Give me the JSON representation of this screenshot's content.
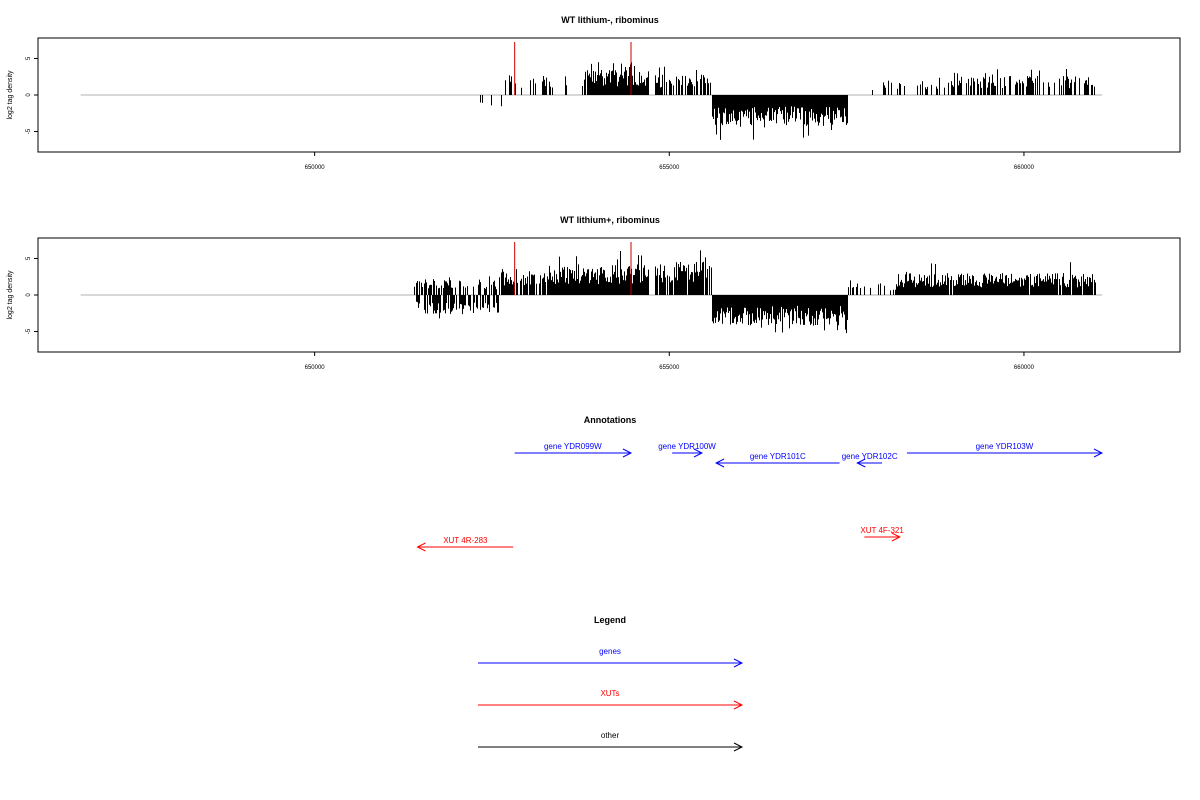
{
  "colors": {
    "gene": "#0000ff",
    "xut": "#ff0000",
    "other": "#000000",
    "marker": "#cc0000",
    "bar": "#000000",
    "baseline": "#b0b0b0"
  },
  "chart_data": [
    {
      "type": "bar",
      "title": "WT lithium-, ribominus",
      "ylabel": "log2 tag density",
      "xlim": [
        646100,
        662200
      ],
      "ylim": [
        -7.8,
        7.8
      ],
      "xticks": [
        650000,
        655000,
        660000
      ],
      "xtick_labels": [
        "650000",
        "655000",
        "660000"
      ],
      "yticks": [
        -5,
        0,
        5
      ],
      "ytick_labels": [
        "-5",
        "0",
        "5"
      ],
      "baseline_range": [
        646700,
        661100
      ],
      "markers": [
        652820,
        654460
      ],
      "segments": [
        {
          "from": 651500,
          "to": 652700,
          "sign": "neg",
          "amp": 2.0,
          "density": 0.05
        },
        {
          "from": 652650,
          "to": 653350,
          "sign": "pos",
          "amp": 2.8,
          "density": 0.35
        },
        {
          "from": 653350,
          "to": 653800,
          "sign": "pos",
          "amp": 2.0,
          "density": 0.25
        },
        {
          "from": 653800,
          "to": 654700,
          "sign": "pos",
          "amp": 3.4,
          "density": 0.95
        },
        {
          "from": 654000,
          "to": 654500,
          "sign": "pos",
          "amp": 4.6,
          "density": 0.6
        },
        {
          "from": 654800,
          "to": 655600,
          "sign": "pos",
          "amp": 2.8,
          "density": 0.7
        },
        {
          "from": 655600,
          "to": 657500,
          "sign": "neg",
          "amp": 4.3,
          "density": 1.0
        },
        {
          "from": 657500,
          "to": 658000,
          "sign": "pos",
          "amp": 1.0,
          "density": 0.02
        },
        {
          "from": 658000,
          "to": 659000,
          "sign": "pos",
          "amp": 2.0,
          "density": 0.3
        },
        {
          "from": 659000,
          "to": 661000,
          "sign": "pos",
          "amp": 2.6,
          "density": 0.6
        }
      ]
    },
    {
      "type": "bar",
      "title": "WT lithium+, ribominus",
      "ylabel": "log2 tag density",
      "xlim": [
        646100,
        662200
      ],
      "ylim": [
        -7.8,
        7.8
      ],
      "xticks": [
        650000,
        655000,
        660000
      ],
      "xtick_labels": [
        "650000",
        "655000",
        "660000"
      ],
      "yticks": [
        -5,
        0,
        5
      ],
      "ytick_labels": [
        "-5",
        "0",
        "5"
      ],
      "baseline_range": [
        646700,
        661100
      ],
      "markers": [
        652820,
        654460
      ],
      "segments": [
        {
          "from": 651400,
          "to": 652600,
          "sign": "pos",
          "amp": 2.2,
          "density": 0.55
        },
        {
          "from": 651400,
          "to": 652600,
          "sign": "neg",
          "amp": 2.6,
          "density": 0.6
        },
        {
          "from": 652600,
          "to": 653400,
          "sign": "pos",
          "amp": 3.6,
          "density": 0.8
        },
        {
          "from": 653400,
          "to": 654700,
          "sign": "pos",
          "amp": 4.2,
          "density": 1.0
        },
        {
          "from": 654800,
          "to": 655600,
          "sign": "pos",
          "amp": 4.6,
          "density": 0.95
        },
        {
          "from": 655600,
          "to": 657500,
          "sign": "neg",
          "amp": 4.2,
          "density": 1.0
        },
        {
          "from": 657500,
          "to": 658200,
          "sign": "pos",
          "amp": 1.6,
          "density": 0.35
        },
        {
          "from": 658200,
          "to": 661000,
          "sign": "pos",
          "amp": 3.0,
          "density": 0.95
        }
      ]
    }
  ],
  "annotations": {
    "title": "Annotations",
    "features": [
      {
        "label": "gene YDR099W",
        "start": 652820,
        "end": 654460,
        "dir": "right",
        "kind": "gene",
        "row": 0
      },
      {
        "label": "gene YDR100W",
        "start": 655040,
        "end": 655460,
        "dir": "right",
        "kind": "gene",
        "row": 0
      },
      {
        "label": "gene YDR101C",
        "start": 655660,
        "end": 657400,
        "dir": "left",
        "kind": "gene",
        "row": 1
      },
      {
        "label": "gene YDR102C",
        "start": 657650,
        "end": 658000,
        "dir": "left",
        "kind": "gene",
        "row": 1
      },
      {
        "label": "gene YDR103W",
        "start": 658350,
        "end": 661100,
        "dir": "right",
        "kind": "gene",
        "row": 0
      },
      {
        "label": "XUT 4R-283",
        "start": 651450,
        "end": 652800,
        "dir": "left",
        "kind": "xut",
        "row": 3
      },
      {
        "label": "XUT 4F-321",
        "start": 657750,
        "end": 658250,
        "dir": "right",
        "kind": "xut",
        "row": 2
      }
    ]
  },
  "legend": {
    "title": "Legend",
    "items": [
      {
        "label": "genes",
        "kind": "gene"
      },
      {
        "label": "XUTs",
        "kind": "xut"
      },
      {
        "label": "other",
        "kind": "other"
      }
    ]
  }
}
